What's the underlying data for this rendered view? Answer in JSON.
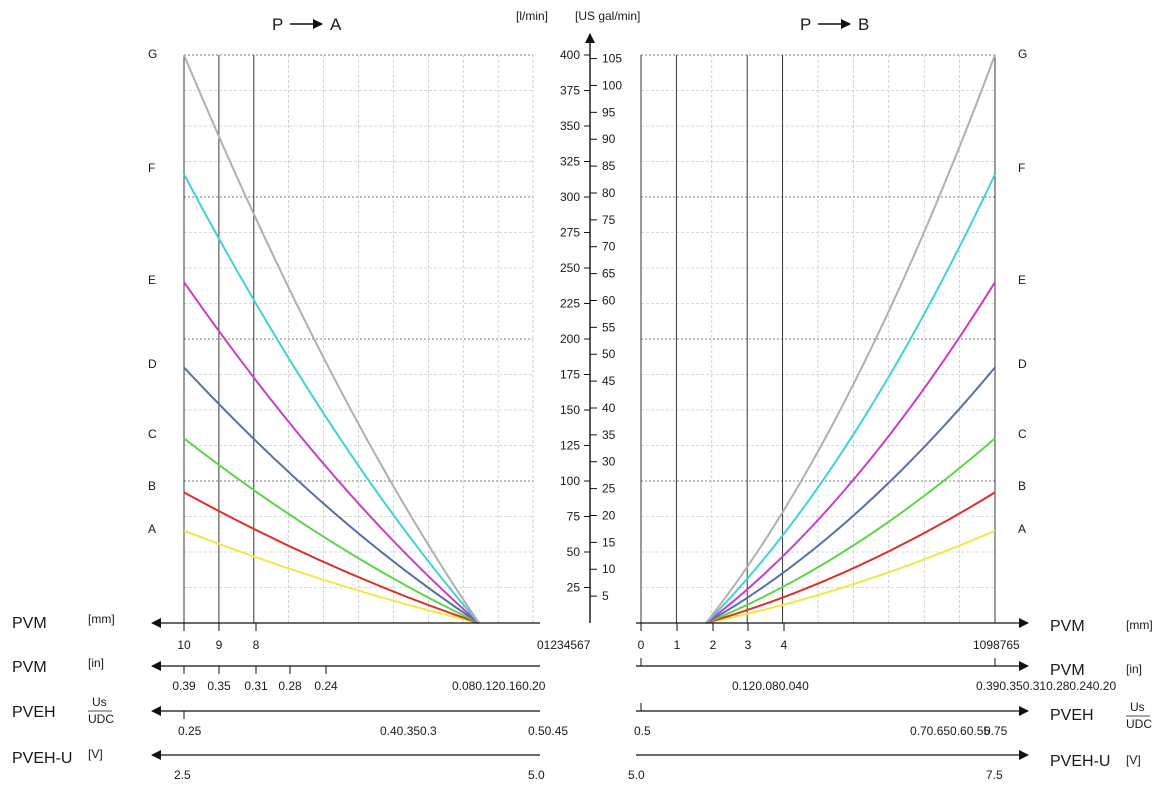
{
  "chart_data": {
    "type": "line",
    "titles": {
      "left": "P",
      "right": "P"
    },
    "center_axis": {
      "unit_lpm": "[l/min]",
      "unit_gal": "[US gal/min]",
      "lpm_ticks": [
        "25",
        "50",
        "75",
        "100",
        "125",
        "150",
        "175",
        "200",
        "225",
        "250",
        "275",
        "300",
        "325",
        "350",
        "375",
        "400"
      ],
      "gal_ticks": [
        "5",
        "10",
        "15",
        "20",
        "25",
        "30",
        "35",
        "40",
        "45",
        "50",
        "55",
        "60",
        "65",
        "70",
        "75",
        "80",
        "85",
        "90",
        "95",
        "100",
        "105"
      ],
      "ylim_lpm": [
        0,
        400
      ]
    },
    "curve_labels": [
      "A",
      "B",
      "C",
      "D",
      "E",
      "F",
      "G"
    ],
    "series": [
      {
        "name": "A",
        "color": "#f2e84a",
        "start_flow": 65,
        "end_flow": 65
      },
      {
        "name": "B",
        "color": "#d8322b",
        "start_flow": 92,
        "end_flow": 92
      },
      {
        "name": "C",
        "color": "#5fd44a",
        "start_flow": 130,
        "end_flow": 130
      },
      {
        "name": "D",
        "color": "#5a6fa6",
        "start_flow": 180,
        "end_flow": 180
      },
      {
        "name": "E",
        "color": "#c73ec9",
        "start_flow": 240,
        "end_flow": 240
      },
      {
        "name": "F",
        "color": "#3fd3d8",
        "start_flow": 316,
        "end_flow": 316
      },
      {
        "name": "G",
        "color": "#b0b0b0",
        "start_flow": 400,
        "end_flow": 400
      }
    ],
    "bottom_axes": [
      {
        "name": "PVM",
        "unit": "[mm]",
        "left_ticks": [
          "10",
          "9",
          "8"
        ],
        "left_end": "01234567",
        "right_ticks": [
          "0",
          "1",
          "2",
          "3",
          "4"
        ],
        "right_end": "1098765"
      },
      {
        "name": "PVM",
        "unit": "[in]",
        "left_ticks": [
          "0.39",
          "0.35",
          "0.31",
          "0.28",
          "0.24"
        ],
        "left_mid": "0.080.120.160.20",
        "right_mid": "0.120.080.040",
        "right_end": "0.390.350.310.280.240.20"
      },
      {
        "name": "PVEH",
        "unit_num": "Us",
        "unit_den": "UDC",
        "left_start": "0.25",
        "left_mid": "0.40.350.3",
        "left_end": "0.50.45",
        "right_start": "0.5",
        "right_mid": "0.70.650.60.55",
        "right_end": "0.75"
      },
      {
        "name": "PVEH-U",
        "unit": "[V]",
        "left_start": "2.5",
        "left_end": "5.0",
        "right_start": "5.0",
        "right_end": "7.5"
      }
    ]
  }
}
